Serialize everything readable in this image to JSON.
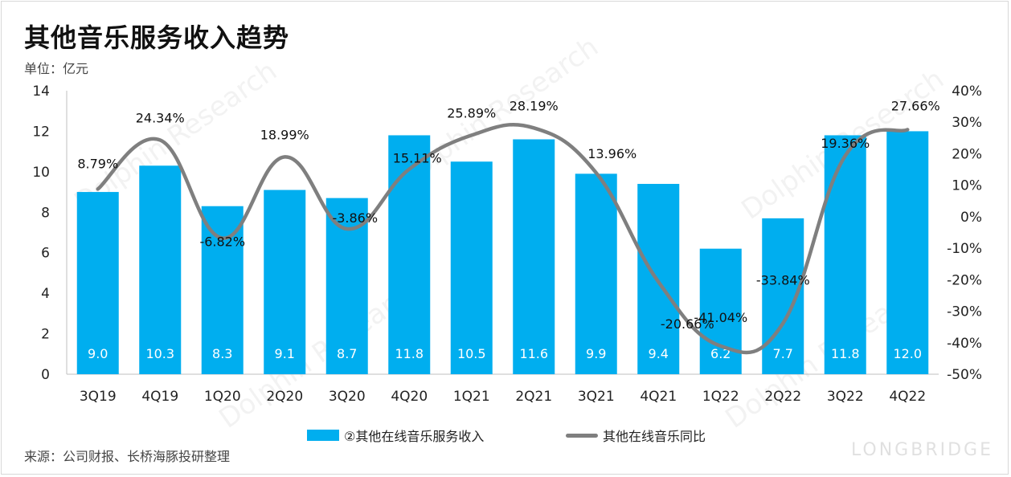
{
  "title": "其他音乐服务收入趋势",
  "unit": "单位：亿元",
  "source": "来源：公司财报、长桥海豚投研整理",
  "brand": "LONGBRIDGE",
  "watermark": "Dolphin Research",
  "colors": {
    "bar": "#00aeef",
    "line": "#7f7f7f",
    "bar_label": "#ffffff"
  },
  "chart_data": {
    "type": "bar",
    "categories": [
      "3Q19",
      "4Q19",
      "1Q20",
      "2Q20",
      "3Q20",
      "4Q20",
      "1Q21",
      "2Q21",
      "3Q21",
      "4Q21",
      "1Q22",
      "2Q22",
      "3Q22",
      "4Q22"
    ],
    "series": [
      {
        "name": "②其他在线音乐服务收入",
        "type": "bar",
        "axis": "left",
        "values": [
          9.0,
          10.3,
          8.3,
          9.1,
          8.7,
          11.8,
          10.5,
          11.6,
          9.9,
          9.4,
          6.2,
          7.7,
          11.8,
          12.0
        ],
        "labels": [
          "9.0",
          "10.3",
          "8.3",
          "9.1",
          "8.7",
          "11.8",
          "10.5",
          "11.6",
          "9.9",
          "9.4",
          "6.2",
          "7.7",
          "11.8",
          "12.0"
        ]
      },
      {
        "name": "其他在线音乐同比",
        "type": "line",
        "axis": "right",
        "values": [
          8.79,
          24.34,
          -6.82,
          18.99,
          -3.86,
          15.11,
          25.89,
          28.19,
          13.96,
          -20.66,
          -41.04,
          -33.84,
          19.36,
          27.66
        ],
        "labels": [
          "8.79%",
          "24.34%",
          "-6.82%",
          "18.99%",
          "-3.86%",
          "15.11%",
          "25.89%",
          "28.19%",
          "13.96%",
          "-20.66%",
          "-41.04%",
          "-33.84%",
          "19.36%",
          "27.66%"
        ]
      }
    ],
    "y_left": {
      "min": 0,
      "max": 14,
      "ticks": [
        "0",
        "2",
        "4",
        "6",
        "8",
        "10",
        "12",
        "14"
      ]
    },
    "y_right": {
      "min": -50,
      "max": 40,
      "ticks": [
        "-50%",
        "-40%",
        "-30%",
        "-20%",
        "-10%",
        "0%",
        "10%",
        "20%",
        "30%",
        "40%"
      ]
    },
    "legend_position": "bottom",
    "grid": false
  }
}
